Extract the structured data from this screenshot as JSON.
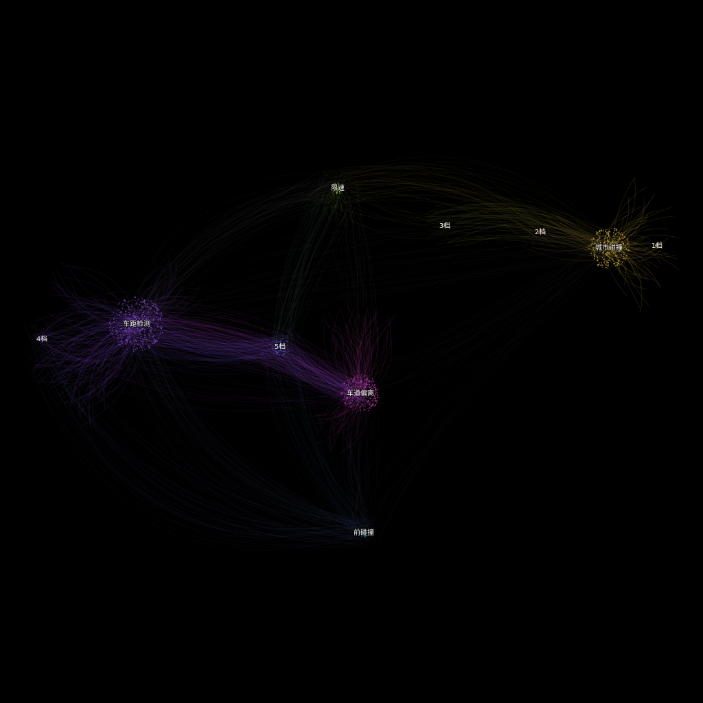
{
  "graph": {
    "nodes": [
      {
        "id": "chejujiance",
        "label": "车距检测",
        "color": "#8a4fd6"
      },
      {
        "id": "chedaopianli",
        "label": "车道偏离",
        "color": "#c040b0"
      },
      {
        "id": "wuhao",
        "label": "5档",
        "color": "#4f62d8"
      },
      {
        "id": "sihao",
        "label": "4档",
        "color": "#8a4fd6"
      },
      {
        "id": "qianpengzhuang",
        "label": "前碰撞",
        "color": "#3c8fb0"
      },
      {
        "id": "xiansu",
        "label": "限速",
        "color": "#8fbf3c"
      },
      {
        "id": "sanhao",
        "label": "3档",
        "color": "#6f9a4a"
      },
      {
        "id": "erhao",
        "label": "2档",
        "color": "#c0643c"
      },
      {
        "id": "chengshipengzhuang",
        "label": "城市碰撞",
        "color": "#d9b940"
      },
      {
        "id": "yihao",
        "label": "1档",
        "color": "#d9b940"
      }
    ]
  }
}
